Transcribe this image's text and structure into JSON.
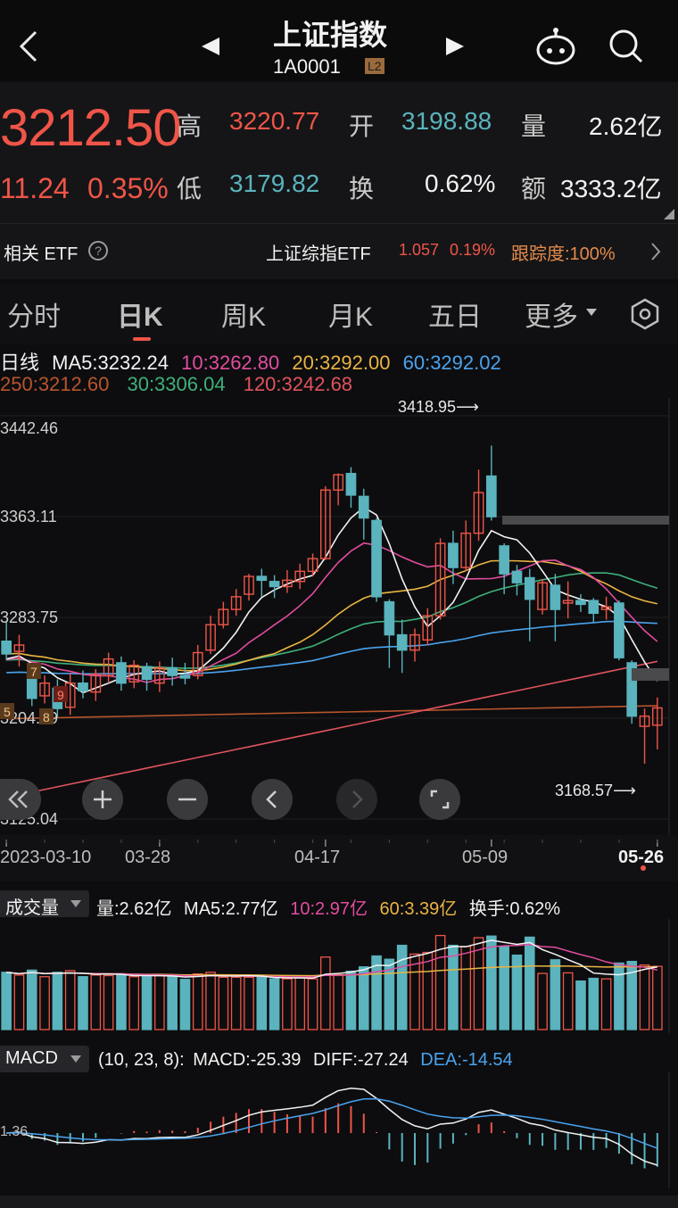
{
  "header": {
    "title": "上证指数",
    "code": "1A0001",
    "level_badge": "L2"
  },
  "quote": {
    "price": "3212.50",
    "change": "11.24",
    "change_pct": "0.35%",
    "high_label": "高",
    "high": "3220.77",
    "low_label": "低",
    "low": "3179.82",
    "open_label": "开",
    "open": "3198.88",
    "turnover_label": "换",
    "turnover": "0.62%",
    "volume_label": "量",
    "volume": "2.62亿",
    "amount_label": "额",
    "amount": "3333.2亿"
  },
  "etf": {
    "label": "相关 ETF",
    "name": "上证综指ETF",
    "price": "1.057",
    "pct": "0.19%",
    "tracking": "跟踪度:100%"
  },
  "tabs": [
    "分时",
    "日K",
    "周K",
    "月K",
    "五日",
    "更多"
  ],
  "active_tab": "日K",
  "ma": {
    "line_label": "日线",
    "ma5": "MA5:3232.24",
    "ma10": "10:3262.80",
    "ma20": "20:3292.00",
    "ma60": "60:3292.02",
    "ma250": "250:3212.60",
    "ma30": "30:3306.04",
    "ma120": "120:3242.68"
  },
  "price_axis": [
    "3442.46",
    "3363.11",
    "3283.75",
    "3204.39",
    "3125.04"
  ],
  "annotations": {
    "max": "3418.95⟶",
    "min": "3168.57⟶"
  },
  "markers": [
    "5",
    "7",
    "9",
    "8"
  ],
  "dates": [
    "2023-03-10",
    "03-28",
    "04-17",
    "05-09",
    "05-26"
  ],
  "volume_panel": {
    "title": "成交量",
    "vol": "量:2.62亿",
    "ma5": "MA5:2.77亿",
    "ma10": "10:2.97亿",
    "ma60": "60:3.39亿",
    "turnover": "换手:0.62%"
  },
  "macd_panel": {
    "title": "MACD",
    "params": "(10, 23, 8):",
    "macd": "MACD:-25.39",
    "diff": "DIFF:-27.24",
    "dea": "DEA:-14.54",
    "axis_label": "1.36"
  },
  "colors": {
    "up": "#ef5548",
    "down": "#5ab3bd",
    "ma5": "#f2f2f2",
    "ma10": "#e24d9f",
    "ma20": "#e9b442",
    "ma60": "#4aa3ee",
    "ma120": "#e0535d",
    "ma250": "#b8552c",
    "ma30": "#3fb07a"
  },
  "chart_data": {
    "type": "candlestick",
    "x": [
      "2023-03-10",
      "03-13",
      "03-14",
      "03-15",
      "03-16",
      "03-17",
      "03-20",
      "03-21",
      "03-22",
      "03-23",
      "03-24",
      "03-27",
      "03-28",
      "03-29",
      "03-30",
      "03-31",
      "04-03",
      "04-04",
      "04-06",
      "04-07",
      "04-10",
      "04-11",
      "04-12",
      "04-13",
      "04-14",
      "04-17",
      "04-18",
      "04-19",
      "04-20",
      "04-21",
      "04-24",
      "04-25",
      "04-26",
      "04-27",
      "04-28",
      "05-04",
      "05-05",
      "05-08",
      "05-09",
      "05-10",
      "05-11",
      "05-12",
      "05-15",
      "05-16",
      "05-17",
      "05-18",
      "05-19",
      "05-22",
      "05-23",
      "05-24",
      "05-25",
      "05-26"
    ],
    "candles": [
      [
        3265,
        3255,
        3280,
        3250
      ],
      [
        3257,
        3262,
        3270,
        3245
      ],
      [
        3240,
        3220,
        3248,
        3214
      ],
      [
        3222,
        3232,
        3238,
        3216
      ],
      [
        3228,
        3212,
        3235,
        3205
      ],
      [
        3213,
        3232,
        3240,
        3207
      ],
      [
        3232,
        3226,
        3242,
        3220
      ],
      [
        3225,
        3239,
        3243,
        3218
      ],
      [
        3238,
        3251,
        3256,
        3232
      ],
      [
        3248,
        3232,
        3253,
        3226
      ],
      [
        3233,
        3246,
        3250,
        3228
      ],
      [
        3245,
        3235,
        3248,
        3226
      ],
      [
        3232,
        3244,
        3249,
        3225
      ],
      [
        3244,
        3238,
        3252,
        3230
      ],
      [
        3238,
        3236,
        3248,
        3231
      ],
      [
        3238,
        3256,
        3262,
        3235
      ],
      [
        3258,
        3278,
        3285,
        3255
      ],
      [
        3278,
        3290,
        3296,
        3275
      ],
      [
        3290,
        3300,
        3306,
        3285
      ],
      [
        3302,
        3316,
        3318,
        3297
      ],
      [
        3316,
        3313,
        3322,
        3300
      ],
      [
        3312,
        3308,
        3317,
        3299
      ],
      [
        3308,
        3313,
        3321,
        3303
      ],
      [
        3312,
        3320,
        3326,
        3306
      ],
      [
        3320,
        3330,
        3334,
        3316
      ],
      [
        3330,
        3384,
        3387,
        3329
      ],
      [
        3384,
        3396,
        3397,
        3372
      ],
      [
        3397,
        3380,
        3402,
        3370
      ],
      [
        3379,
        3362,
        3385,
        3345
      ],
      [
        3360,
        3300,
        3362,
        3296
      ],
      [
        3296,
        3270,
        3298,
        3244
      ],
      [
        3270,
        3258,
        3282,
        3240
      ],
      [
        3258,
        3270,
        3275,
        3249
      ],
      [
        3266,
        3285,
        3291,
        3262
      ],
      [
        3285,
        3342,
        3346,
        3282
      ],
      [
        3342,
        3323,
        3352,
        3310
      ],
      [
        3323,
        3350,
        3360,
        3320
      ],
      [
        3350,
        3382,
        3400,
        3344
      ],
      [
        3395,
        3363,
        3418.95,
        3360
      ],
      [
        3340,
        3318,
        3342,
        3302
      ],
      [
        3320,
        3311,
        3325,
        3301
      ],
      [
        3315,
        3298,
        3322,
        3265
      ],
      [
        3290,
        3311,
        3314,
        3286
      ],
      [
        3309,
        3290,
        3318,
        3265
      ],
      [
        3295,
        3297,
        3312,
        3283
      ],
      [
        3297,
        3294,
        3302,
        3288
      ],
      [
        3297,
        3287,
        3299,
        3280
      ],
      [
        3290,
        3292,
        3300,
        3282
      ],
      [
        3295,
        3252,
        3297,
        3250
      ],
      [
        3248,
        3206,
        3250,
        3200
      ],
      [
        3198,
        3206,
        3212,
        3168.57
      ],
      [
        3198.88,
        3212.5,
        3220.77,
        3179.82
      ]
    ],
    "ylim": [
      3125.04,
      3442.46
    ]
  }
}
